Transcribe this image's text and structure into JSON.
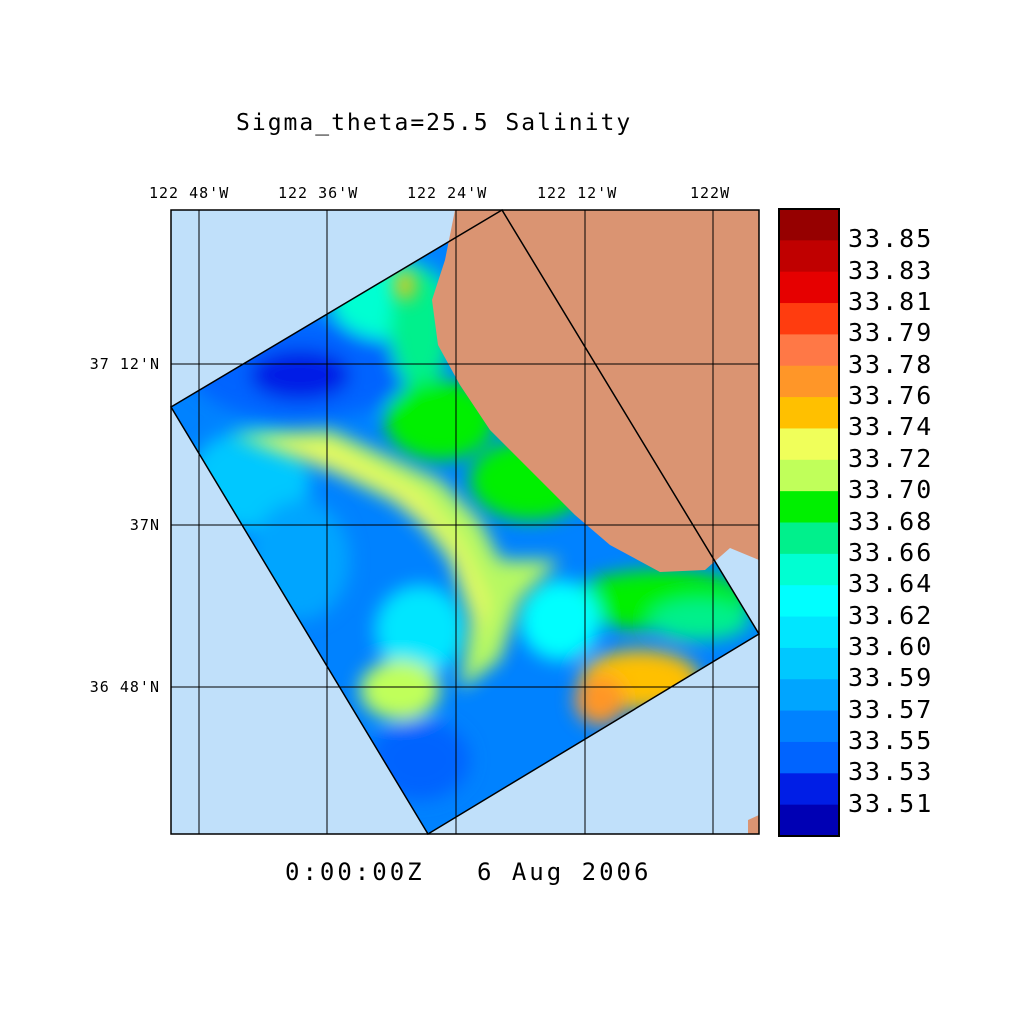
{
  "title": "Sigma_theta=25.5 Salinity",
  "time_label": "0:00:00Z   6 Aug 2006",
  "lon_labels": [
    "122 48'W",
    "122 36'W",
    "122 24'W",
    "122 12'W",
    "122W"
  ],
  "lat_labels": [
    "37 12'N",
    "37N",
    "36 48'N"
  ],
  "colors": {
    "land": "#da9472",
    "ocean": "#c0e0fa"
  },
  "chart_data": {
    "type": "heatmap",
    "title": "Sigma_theta=25.5 Salinity",
    "variable": "Salinity",
    "colorbar_labels": [
      "33.85",
      "33.83",
      "33.81",
      "33.79",
      "33.78",
      "33.76",
      "33.74",
      "33.72",
      "33.70",
      "33.68",
      "33.66",
      "33.64",
      "33.62",
      "33.60",
      "33.59",
      "33.57",
      "33.55",
      "33.53",
      "33.51"
    ],
    "colorbar_colors": [
      "#960000",
      "#c00000",
      "#e60000",
      "#ff3c0f",
      "#ff7846",
      "#ff9628",
      "#ffc000",
      "#f0ff5a",
      "#c0ff5a",
      "#00f000",
      "#00f08c",
      "#00ffd2",
      "#00ffff",
      "#00e6ff",
      "#00c8ff",
      "#00a5ff",
      "#0082ff",
      "#0064ff",
      "#001ee6",
      "#0000b4"
    ],
    "x_ticks": [
      "122 48'W",
      "122 36'W",
      "122 24'W",
      "122 12'W",
      "122W"
    ],
    "y_ticks": [
      "37 12'N",
      "37N",
      "36 48'N"
    ],
    "grid": true
  }
}
